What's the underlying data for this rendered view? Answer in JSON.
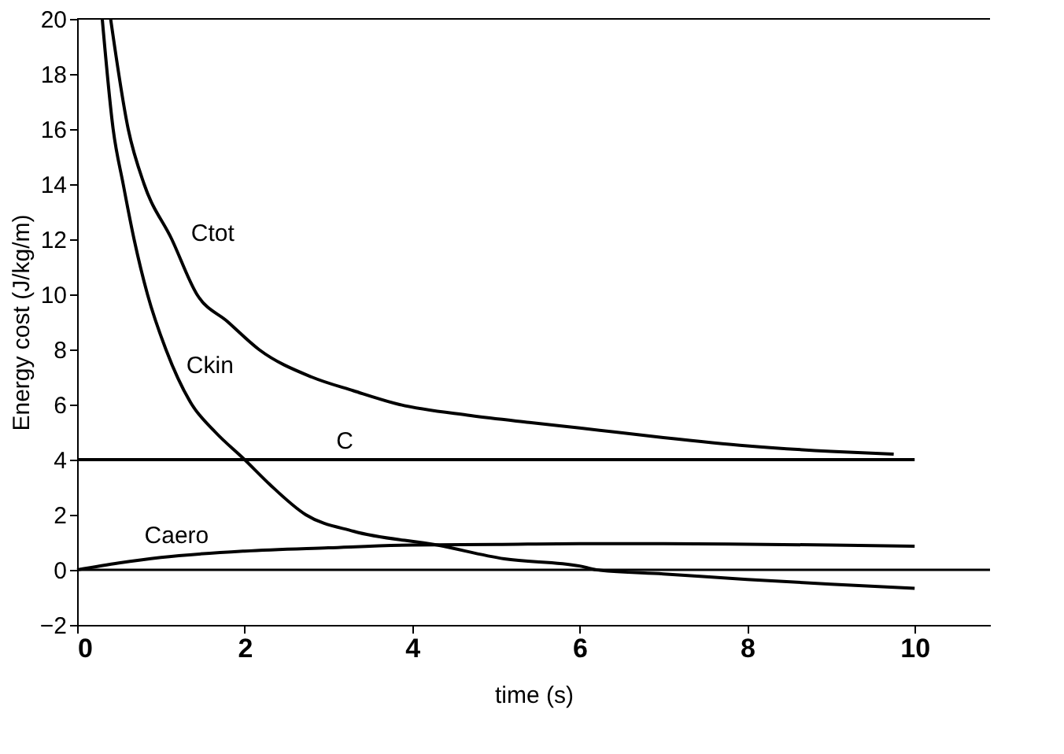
{
  "chart_data": {
    "type": "line",
    "xlabel": "time (s)",
    "ylabel": "Energy cost (J/kg/m)",
    "xlim": [
      0,
      10.9
    ],
    "ylim": [
      -2,
      20
    ],
    "xticks": [
      0,
      2,
      4,
      6,
      8,
      10
    ],
    "yticks": [
      -2,
      0,
      2,
      4,
      6,
      8,
      10,
      12,
      14,
      16,
      18,
      20
    ],
    "grid": false,
    "marker": "none",
    "line_style": "solid",
    "series": [
      {
        "name": "Ctot",
        "color": "#000000",
        "x": [
          0.4,
          0.61,
          0.8,
          1.13,
          1.43,
          1.8,
          2.17,
          2.8,
          3.3,
          3.85,
          4.7,
          5.4,
          6,
          7,
          8,
          9,
          9.75
        ],
        "values": [
          20,
          16,
          14,
          12,
          10,
          9,
          8,
          7,
          6.5,
          6,
          5.6,
          5.35,
          5.15,
          4.8,
          4.5,
          4.3,
          4.2
        ]
      },
      {
        "name": "Ckin",
        "color": "#000000",
        "x": [
          0.3,
          0.43,
          0.55,
          0.68,
          0.84,
          1.06,
          1.37,
          1.65,
          2,
          2.3,
          2.73,
          3.3,
          4.3,
          5.1,
          6,
          6.2,
          7,
          8,
          9,
          10
        ],
        "values": [
          20,
          16,
          14,
          12,
          10,
          8,
          6,
          5,
          4,
          3.1,
          2,
          1.4,
          0.9,
          0.4,
          0.14,
          0,
          -0.15,
          -0.35,
          -0.52,
          -0.67
        ]
      },
      {
        "name": "C",
        "color": "#000000",
        "x": [
          0,
          10
        ],
        "values": [
          4,
          4
        ]
      },
      {
        "name": "Caero",
        "color": "#000000",
        "x": [
          0,
          0.5,
          1,
          2,
          3,
          4,
          5,
          6,
          7,
          8,
          9,
          10
        ],
        "values": [
          0,
          0.25,
          0.45,
          0.68,
          0.8,
          0.9,
          0.92,
          0.95,
          0.95,
          0.93,
          0.9,
          0.86
        ]
      }
    ],
    "ref_lines": [
      {
        "axis": "y",
        "value": 0,
        "color": "#000000"
      }
    ]
  }
}
